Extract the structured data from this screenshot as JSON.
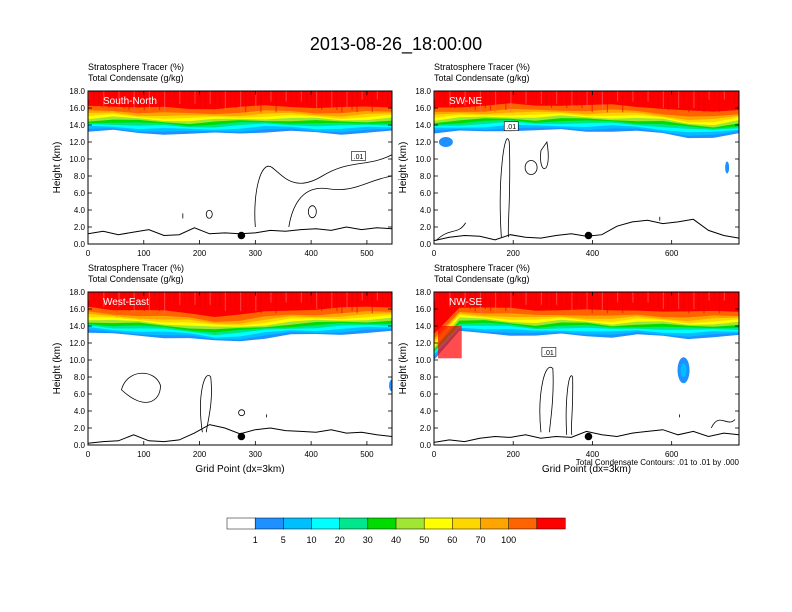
{
  "title": "2013-08-26_18:00:00",
  "colors": {
    "palette": [
      "#ffffff",
      "#1e90ff",
      "#00bfff",
      "#00ffff",
      "#00e68c",
      "#00dc00",
      "#a0e632",
      "#ffff00",
      "#ffd700",
      "#ffa500",
      "#ff6400",
      "#ff0000"
    ]
  },
  "chart_data": [
    {
      "type": "heatmap",
      "panel": "South-North",
      "labels": [
        "Stratosphere Tracer   (%)",
        "Total Condensate   (g/kg)"
      ],
      "ylabel": "Height (km)",
      "xlabel": "",
      "xlim": [
        0,
        545
      ],
      "ylim": [
        0,
        18
      ],
      "xticks": [
        0,
        100,
        200,
        300,
        400,
        500
      ],
      "yticks": [
        "0.0",
        "2.0",
        "4.0",
        "6.0",
        "8.0",
        "10.0",
        "12.0",
        "14.0",
        "16.0",
        "18.0"
      ],
      "tracer_base_km": [
        13.2,
        13.3,
        13.1,
        13.0,
        12.9,
        13.0,
        13.1,
        13.2,
        13.2,
        13.1,
        13.0,
        13.1,
        13.2
      ],
      "terrain_km": [
        1.2,
        1.5,
        1.1,
        1.4,
        1.7,
        1.0,
        1.1,
        1.9,
        1.2,
        1.3,
        1.2,
        1.3,
        1.6,
        1.5,
        1.7,
        1.8,
        1.6,
        2.0,
        1.7,
        1.9,
        1.8
      ],
      "contour_label": ".01",
      "marker": {
        "x": 275,
        "y": 1.0
      }
    },
    {
      "type": "heatmap",
      "panel": "SW-NE",
      "labels": [
        "Stratosphere Tracer   (%)",
        "Total Condensate   (g/kg)"
      ],
      "ylabel": "Height (km)",
      "xlabel": "",
      "xlim": [
        0,
        770
      ],
      "ylim": [
        0,
        18
      ],
      "xticks": [
        0,
        200,
        400,
        600
      ],
      "yticks": [
        "0.0",
        "2.0",
        "4.0",
        "6.0",
        "8.0",
        "10.0",
        "12.0",
        "14.0",
        "16.0",
        "18.0"
      ],
      "tracer_base_km": [
        13.0,
        13.2,
        13.3,
        13.4,
        13.3,
        13.4,
        13.3,
        13.3,
        13.2,
        13.0,
        12.6,
        12.5,
        12.9
      ],
      "terrain_km": [
        0.4,
        0.8,
        1.0,
        0.9,
        0.5,
        1.1,
        0.8,
        0.7,
        1.0,
        1.2,
        0.9,
        1.1,
        2.1,
        2.6,
        2.8,
        2.4,
        2.6,
        2.9,
        1.6,
        1.0,
        0.7
      ],
      "contour_label": ".01",
      "marker": {
        "x": 390,
        "y": 1.0
      }
    },
    {
      "type": "heatmap",
      "panel": "West-East",
      "labels": [
        "Stratosphere Tracer   (%)",
        "Total Condensate   (g/kg)"
      ],
      "ylabel": "Height (km)",
      "xlabel": "Grid Point (dx=3km)",
      "xlim": [
        0,
        545
      ],
      "ylim": [
        0,
        18
      ],
      "xticks": [
        0,
        100,
        200,
        300,
        400,
        500
      ],
      "yticks": [
        "0.0",
        "2.0",
        "4.0",
        "6.0",
        "8.0",
        "10.0",
        "12.0",
        "14.0",
        "16.0",
        "18.0"
      ],
      "tracer_base_km": [
        13.2,
        13.0,
        12.9,
        12.7,
        12.5,
        12.2,
        12.3,
        12.6,
        12.9,
        13.0,
        13.1,
        13.2,
        13.3
      ],
      "terrain_km": [
        0.2,
        0.4,
        0.5,
        1.2,
        0.5,
        0.4,
        0.6,
        1.4,
        2.4,
        2.0,
        1.3,
        1.8,
        2.0,
        1.7,
        1.6,
        1.5,
        1.8,
        1.4,
        1.5,
        1.2,
        1.0
      ],
      "contour_label": "",
      "marker": {
        "x": 275,
        "y": 1.0
      }
    },
    {
      "type": "heatmap",
      "panel": "NW-SE",
      "labels": [
        "Stratosphere Tracer   (%)",
        "Total Condensate   (g/kg)"
      ],
      "ylabel": "Height (km)",
      "xlabel": "Grid Point (dx=3km)",
      "xlim": [
        0,
        770
      ],
      "ylim": [
        0,
        18
      ],
      "xticks": [
        0,
        200,
        400,
        600
      ],
      "yticks": [
        "0.0",
        "2.0",
        "4.0",
        "6.0",
        "8.0",
        "10.0",
        "12.0",
        "14.0",
        "16.0",
        "18.0"
      ],
      "tracer_base_km": [
        10.0,
        13.3,
        13.2,
        13.0,
        12.8,
        13.0,
        12.9,
        12.7,
        12.9,
        12.8,
        12.6,
        12.7,
        12.8
      ],
      "terrain_km": [
        0.3,
        0.6,
        0.4,
        0.8,
        1.0,
        0.9,
        1.2,
        0.8,
        1.0,
        0.9,
        1.6,
        1.2,
        1.0,
        1.4,
        1.6,
        1.8,
        1.2,
        1.6,
        1.0,
        1.4,
        1.2
      ],
      "contour_label": ".01",
      "marker": {
        "x": 390,
        "y": 1.0
      }
    }
  ],
  "contour_note": "Total Condensate Contours: .01 to .01 by .000",
  "colorbar": {
    "ticks": [
      "1",
      "5",
      "10",
      "20",
      "30",
      "40",
      "50",
      "60",
      "70",
      "100"
    ]
  }
}
